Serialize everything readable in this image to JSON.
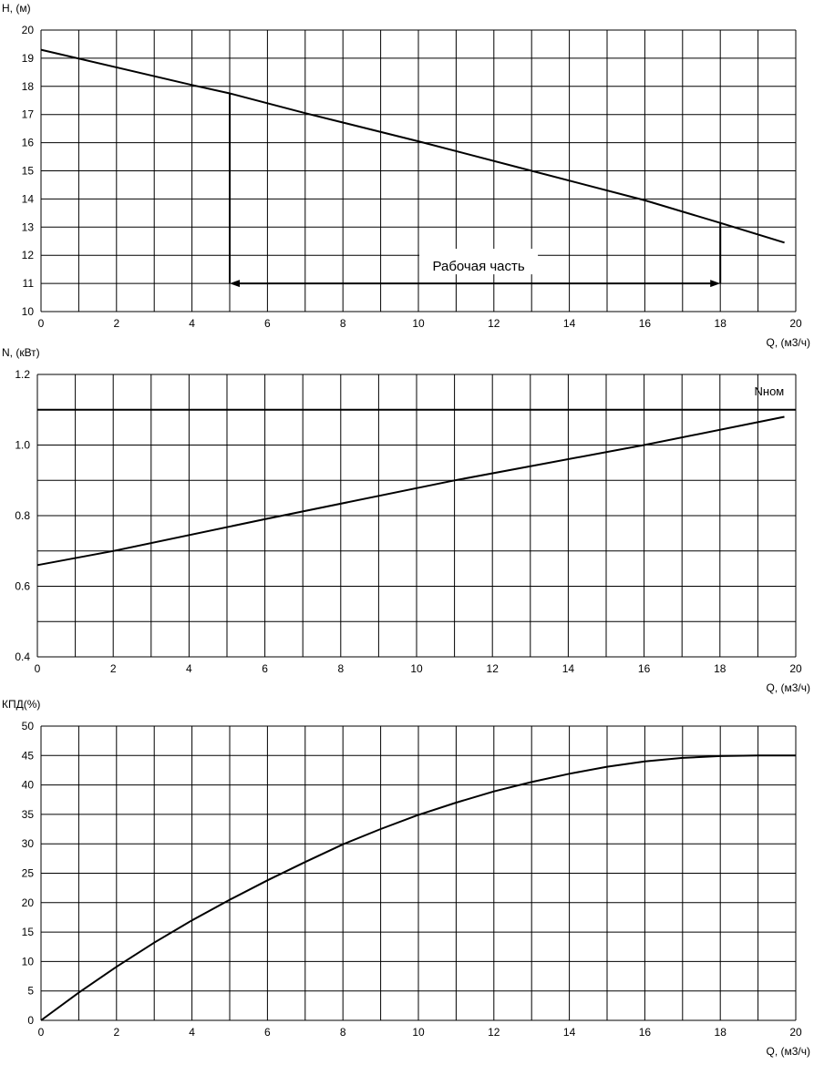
{
  "chart_data": [
    {
      "type": "line",
      "ylabel": "H, (м)",
      "xlabel": "Q, (м3/ч)",
      "xlim": [
        0,
        20
      ],
      "ylim": [
        10,
        20
      ],
      "xticks": [
        "0",
        "2",
        "4",
        "6",
        "8",
        "10",
        "12",
        "14",
        "16",
        "18",
        "20"
      ],
      "yticks": [
        "10",
        "11",
        "12",
        "13",
        "14",
        "15",
        "16",
        "17",
        "18",
        "19",
        "20"
      ],
      "grid": true,
      "series": [
        {
          "x": [
            0,
            4,
            5,
            7,
            10,
            13,
            16,
            18,
            19.7
          ],
          "y": [
            19.3,
            18.05,
            17.75,
            17.05,
            16.05,
            15.0,
            13.95,
            13.15,
            12.45
          ]
        }
      ],
      "annotations": [
        {
          "text": "Рабочая часть",
          "range": [
            5,
            18
          ],
          "at_y": 11
        }
      ]
    },
    {
      "type": "line",
      "ylabel": "N, (кВт)",
      "xlabel": "Q, (м3/ч)",
      "xlim": [
        0,
        20
      ],
      "ylim": [
        0.4,
        1.2
      ],
      "xticks": [
        "0",
        "2",
        "4",
        "6",
        "8",
        "10",
        "12",
        "14",
        "16",
        "18",
        "20"
      ],
      "yticks": [
        "0.4",
        "0.6",
        "0.8",
        "1.0",
        "1.2"
      ],
      "grid": true,
      "series": [
        {
          "x": [
            0,
            2,
            6,
            11,
            16,
            19.7
          ],
          "y": [
            0.66,
            0.7,
            0.79,
            0.9,
            1.0,
            1.08
          ]
        }
      ],
      "hlines": [
        {
          "label": "Nном",
          "y": 1.1
        }
      ]
    },
    {
      "type": "line",
      "ylabel": "КПД(%)",
      "xlabel": "Q, (м3/ч)",
      "xlim": [
        0,
        20
      ],
      "ylim": [
        0,
        50
      ],
      "xticks": [
        "0",
        "2",
        "4",
        "6",
        "8",
        "10",
        "12",
        "14",
        "16",
        "18",
        "20"
      ],
      "yticks": [
        "0",
        "5",
        "10",
        "15",
        "20",
        "25",
        "30",
        "35",
        "40",
        "45",
        "50"
      ],
      "grid": true,
      "series": [
        {
          "x": [
            0,
            1,
            2,
            3,
            4,
            5,
            6,
            7,
            8,
            9,
            10,
            11,
            12,
            13,
            14,
            15,
            16,
            17,
            18,
            19,
            20
          ],
          "y": [
            0,
            4.7,
            9.1,
            13.2,
            17.0,
            20.5,
            23.8,
            26.9,
            29.9,
            32.5,
            34.9,
            37.0,
            38.9,
            40.5,
            41.9,
            43.1,
            44.0,
            44.6,
            44.9,
            45.0,
            45.0
          ]
        }
      ]
    }
  ]
}
